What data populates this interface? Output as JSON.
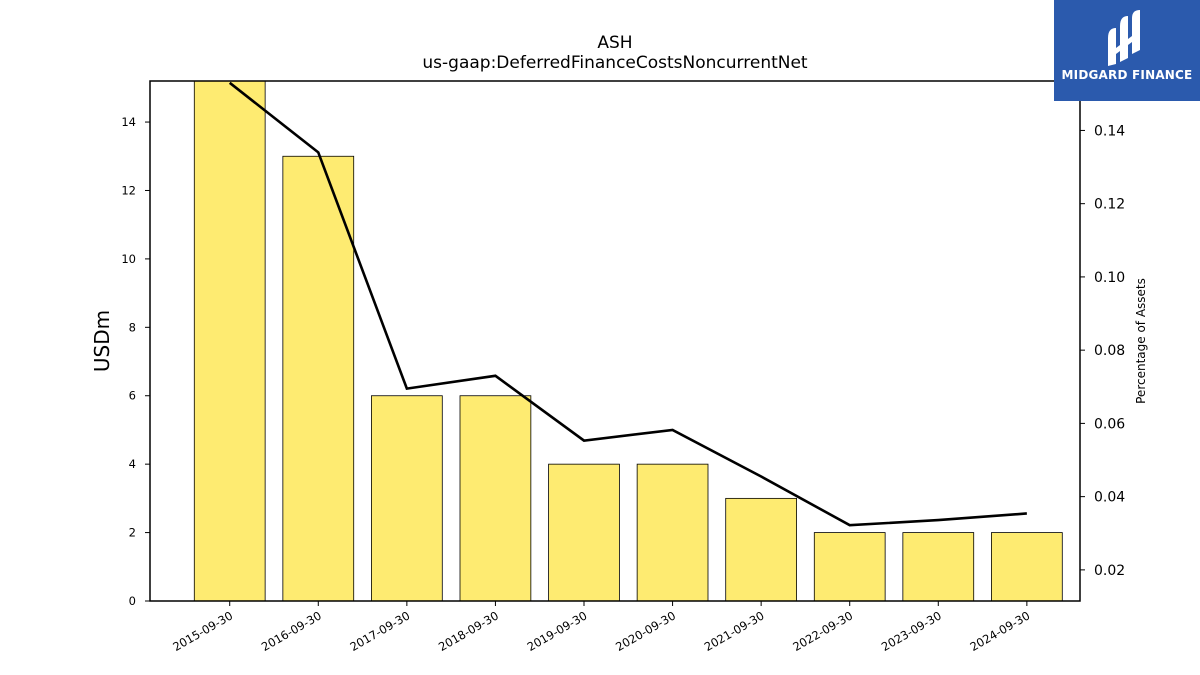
{
  "chart_data": {
    "type": "bar",
    "title": "ASH",
    "subtitle": "us-gaap:DeferredFinanceCostsNoncurrentNet",
    "ylabel": "USDm",
    "y2label": "Percentage of Assets",
    "categories": [
      "2015-09-30",
      "2016-09-30",
      "2017-09-30",
      "2018-09-30",
      "2019-09-30",
      "2020-09-30",
      "2021-09-30",
      "2022-09-30",
      "2023-09-30",
      "2024-09-30"
    ],
    "series": [
      {
        "values": [
          15.2,
          13,
          6,
          6,
          4,
          4,
          3,
          2,
          2,
          2
        ],
        "axis": "left",
        "type": "bar",
        "color": "#feeb71"
      },
      {
        "values": [
          0.153,
          0.134,
          0.0695,
          0.073,
          0.0553,
          0.0582,
          0.0455,
          0.0322,
          0.0336,
          0.0354
        ],
        "axis": "right",
        "type": "line",
        "color": "#000000"
      }
    ],
    "ylim": [
      0,
      15.2
    ],
    "y_ticks": [
      0,
      2,
      4,
      6,
      8,
      10,
      12,
      14
    ],
    "y2lim": [
      0.0115,
      0.1535
    ],
    "y2_ticks": [
      0.02,
      0.04,
      0.06,
      0.08,
      0.1,
      0.12,
      0.14
    ],
    "y2_tick_labels": [
      "0.02",
      "0.04",
      "0.06",
      "0.08",
      "0.10",
      "0.12",
      "0.14"
    ],
    "grid": false
  },
  "logo": {
    "text": "MIDGARD FINANCE",
    "color": "#2b5aad"
  }
}
